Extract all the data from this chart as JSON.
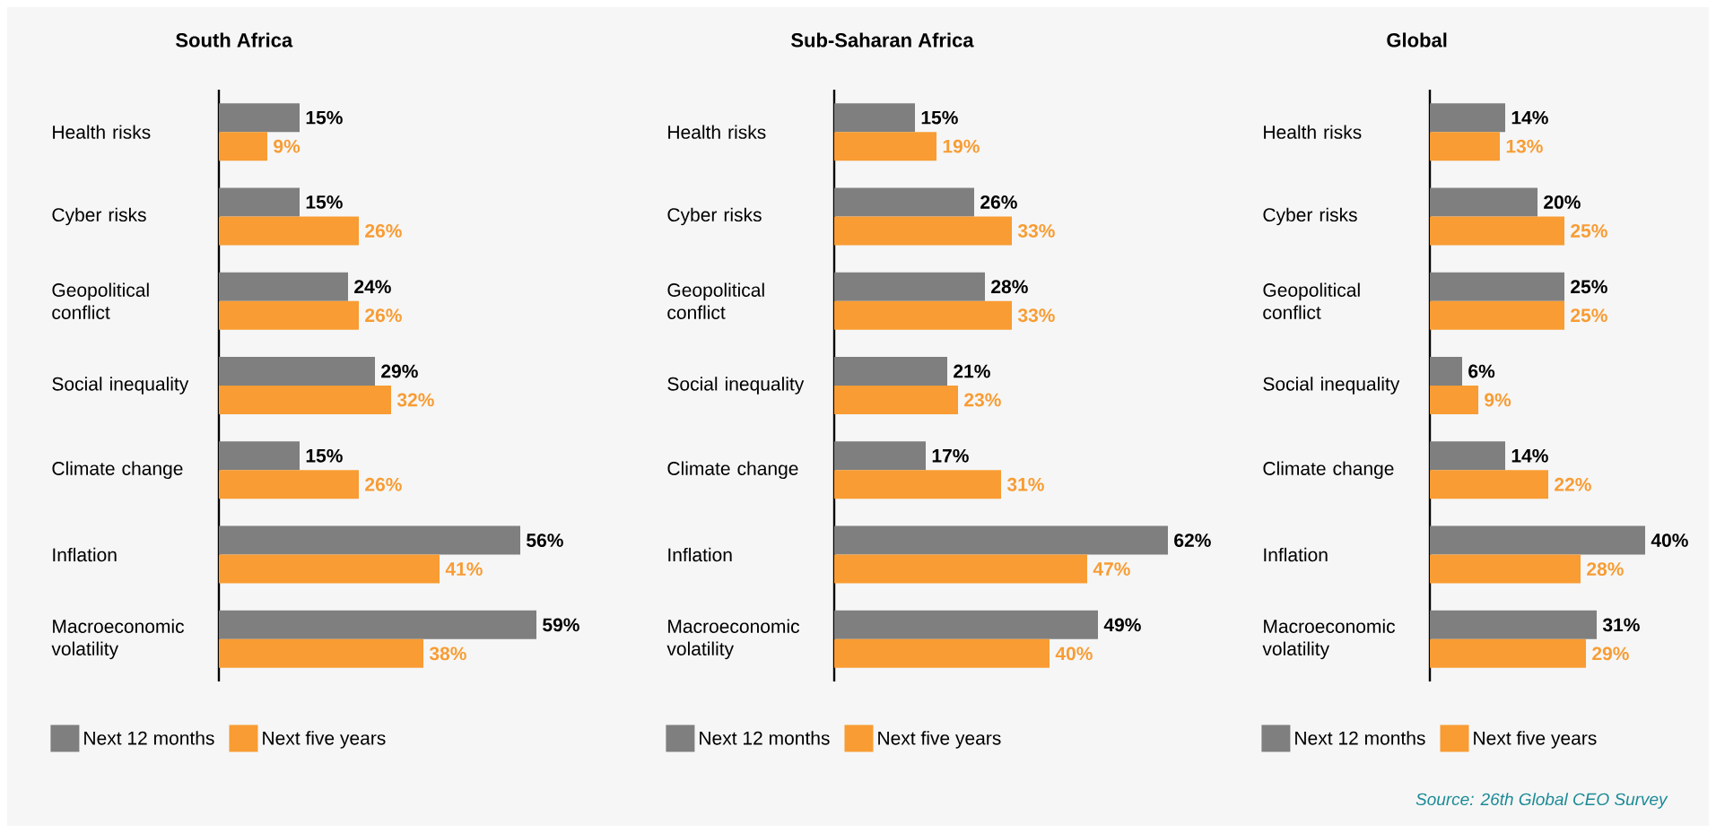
{
  "chart_data": [
    {
      "type": "bar",
      "orientation": "horizontal",
      "title": "South Africa",
      "legend": "bottom",
      "categories": [
        "Health risks",
        "Cyber risks",
        "Geopolitical conflict",
        "Social inequality",
        "Climate change",
        "Inflation",
        "Macroeconomic volatility"
      ],
      "series": [
        {
          "name": "Next 12 months",
          "color": "#7f7f7f",
          "values": [
            15,
            15,
            24,
            29,
            15,
            56,
            59
          ],
          "value_labels": [
            "15%",
            "15%",
            "24%",
            "29%",
            "15%",
            "56%",
            "59%"
          ]
        },
        {
          "name": "Next five years",
          "color": "#f89c33",
          "values": [
            9,
            26,
            26,
            32,
            26,
            41,
            38
          ],
          "value_labels": [
            "9%",
            "26%",
            "26%",
            "32%",
            "26%",
            "41%",
            "38%"
          ]
        }
      ]
    },
    {
      "type": "bar",
      "orientation": "horizontal",
      "title": "Sub-Saharan Africa",
      "legend": "bottom",
      "categories": [
        "Health risks",
        "Cyber risks",
        "Geopolitical conflict",
        "Social inequality",
        "Climate change",
        "Inflation",
        "Macroeconomic volatility"
      ],
      "series": [
        {
          "name": "Next 12 months",
          "color": "#7f7f7f",
          "values": [
            15,
            26,
            28,
            21,
            17,
            62,
            49
          ],
          "value_labels": [
            "15%",
            "26%",
            "28%",
            "21%",
            "17%",
            "62%",
            "49%"
          ]
        },
        {
          "name": "Next five years",
          "color": "#f89c33",
          "values": [
            19,
            33,
            33,
            23,
            31,
            47,
            40
          ],
          "value_labels": [
            "19%",
            "33%",
            "33%",
            "23%",
            "31%",
            "47%",
            "40%"
          ]
        }
      ]
    },
    {
      "type": "bar",
      "orientation": "horizontal",
      "title": "Global",
      "legend": "bottom",
      "categories": [
        "Health risks",
        "Cyber risks",
        "Geopolitical conflict",
        "Social inequality",
        "Climate change",
        "Inflation",
        "Macroeconomic volatility"
      ],
      "series": [
        {
          "name": "Next 12 months",
          "color": "#7f7f7f",
          "values": [
            14,
            20,
            25,
            6,
            14,
            40,
            31
          ],
          "value_labels": [
            "14%",
            "20%",
            "25%",
            "6%",
            "14%",
            "40%",
            "31%"
          ]
        },
        {
          "name": "Next five years",
          "color": "#f89c33",
          "values": [
            13,
            25,
            25,
            9,
            22,
            28,
            29
          ],
          "value_labels": [
            "13%",
            "25%",
            "25%",
            "9%",
            "22%",
            "28%",
            "29%"
          ]
        }
      ],
      "annotations": [
        "Source: 26th Global CEO Survey"
      ]
    }
  ]
}
